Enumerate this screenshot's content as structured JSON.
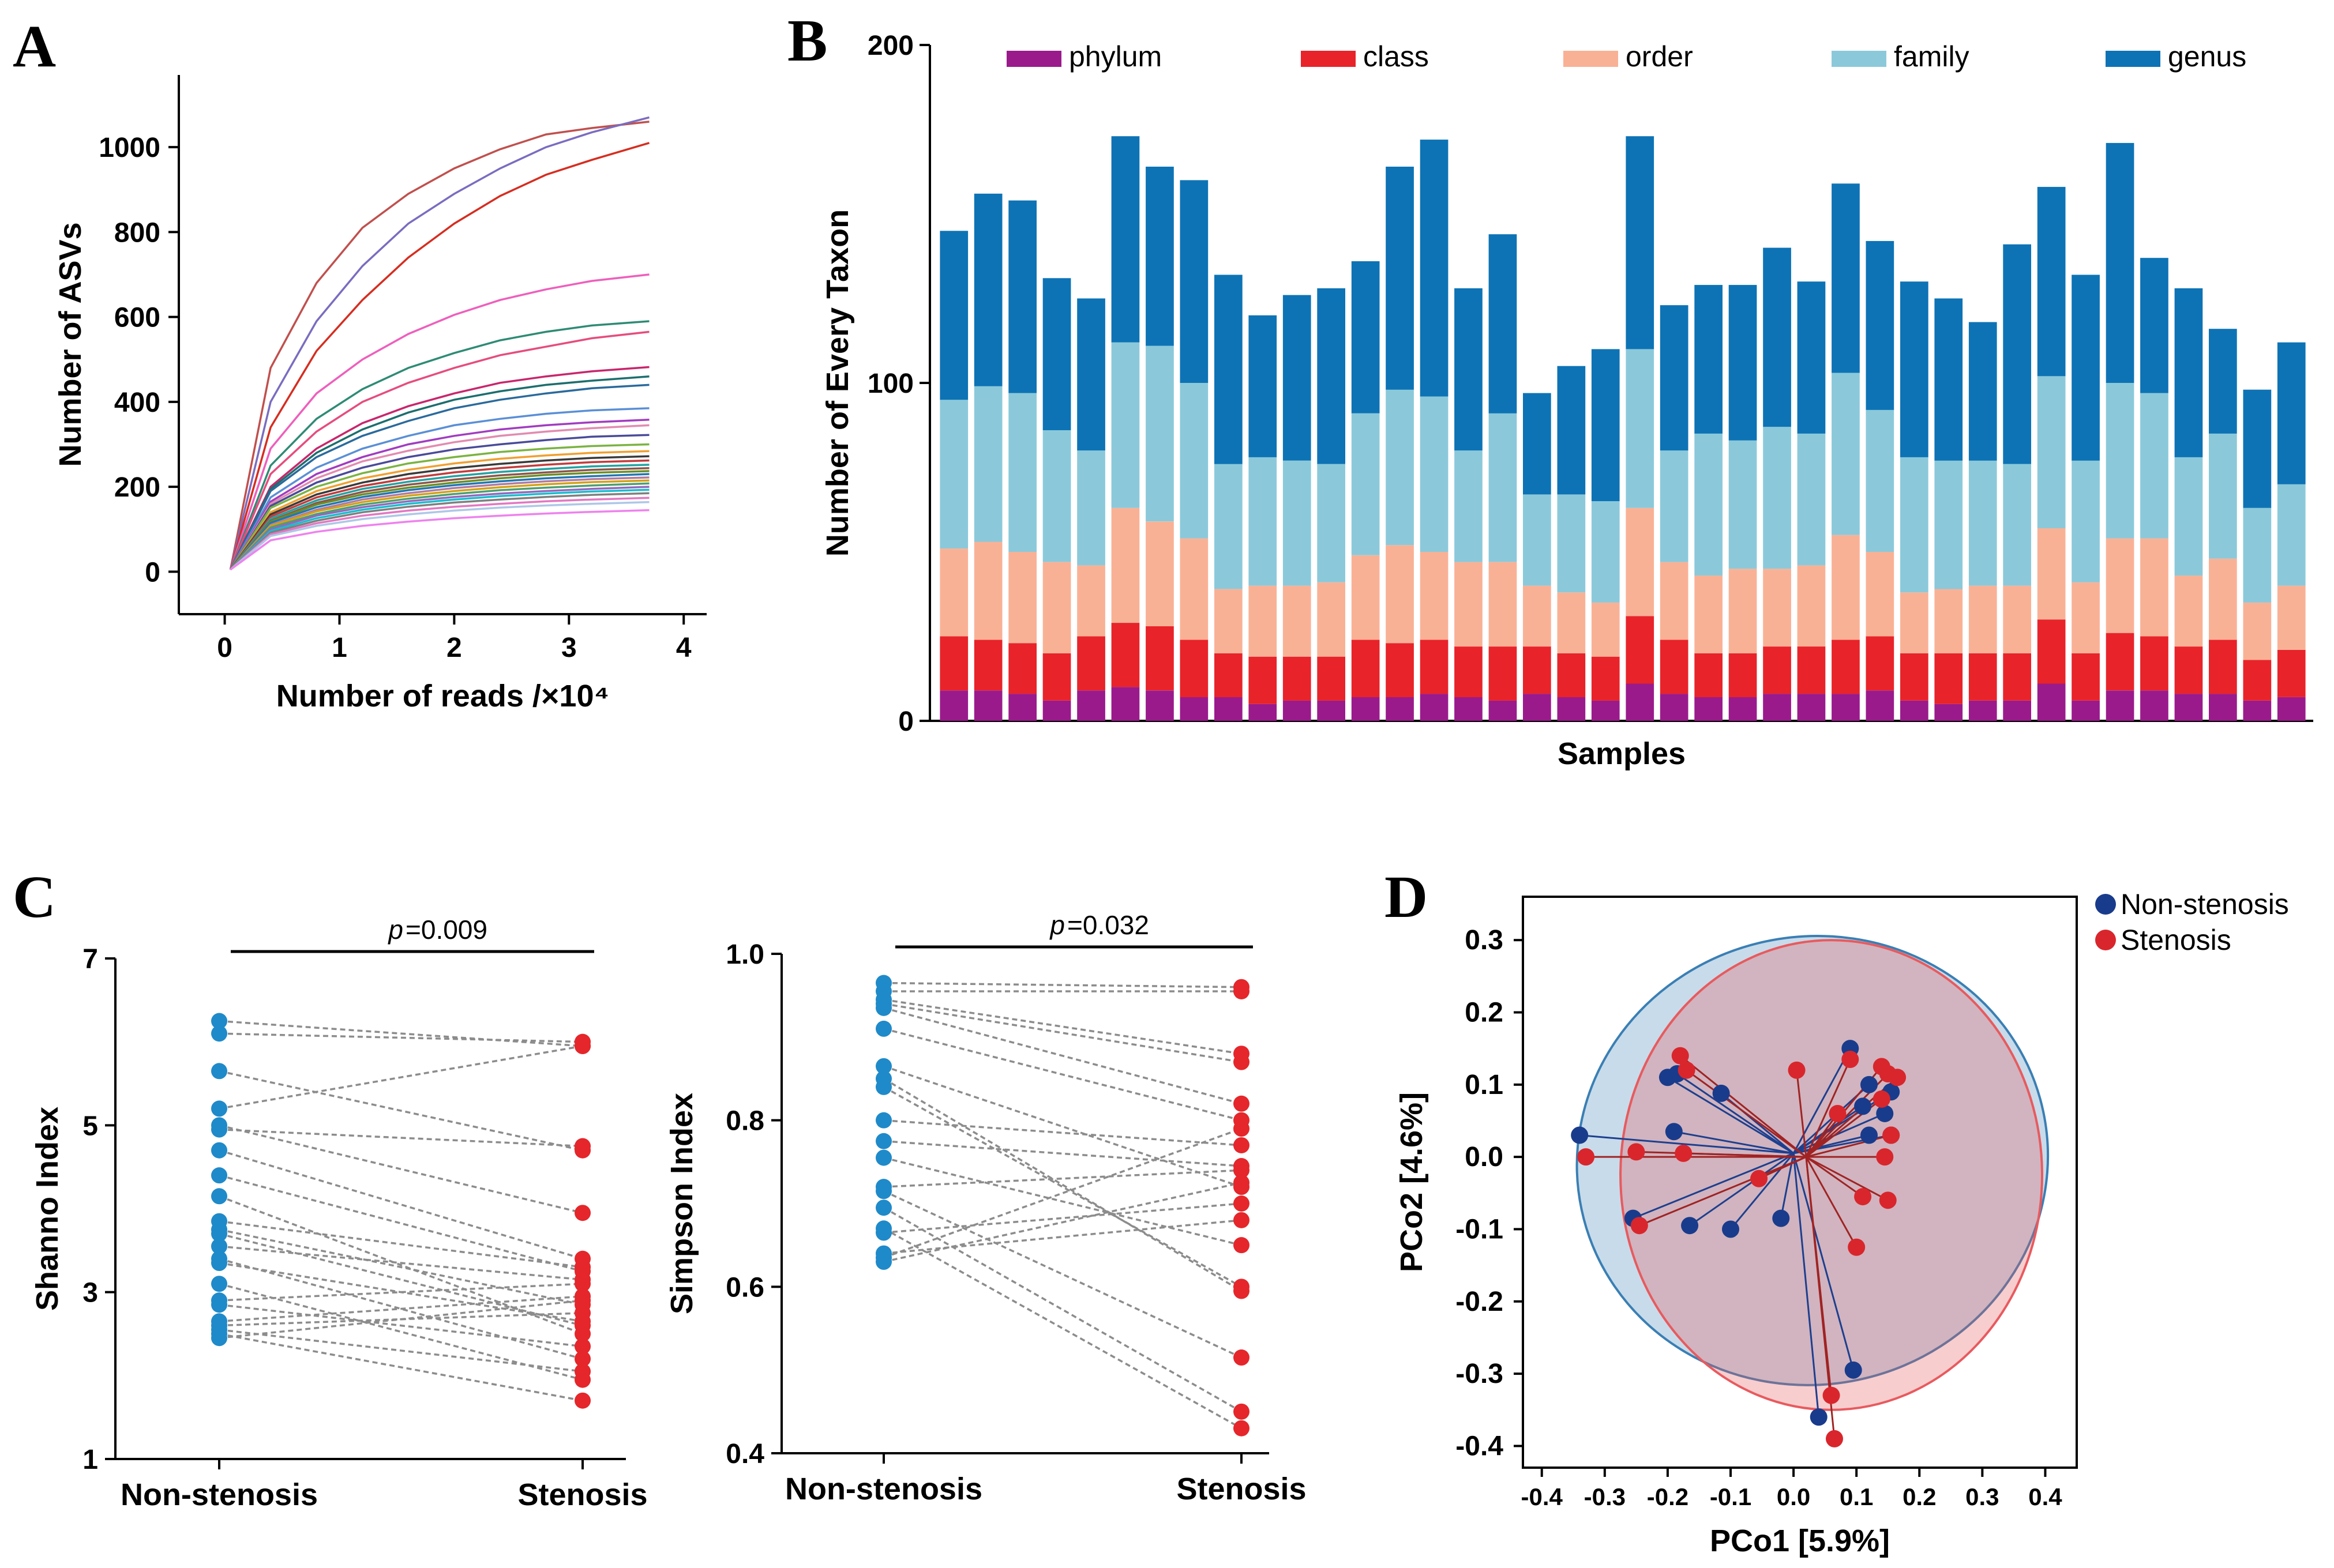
{
  "colors": {
    "phylum": "#9a1a8c",
    "class": "#e8232a",
    "order": "#f9b196",
    "family": "#8bc9da",
    "genus": "#0d73b5",
    "non_stenosis": "#1f8ac9",
    "stenosis": "#e5262b",
    "pcoa_non": "#193b8c",
    "pcoa_sten": "#d9262c",
    "ellipse_non": "#3a7fb4",
    "ellipse_sten": "#e85a5e"
  },
  "panels": {
    "a": "A",
    "b": "B",
    "c": "C",
    "d": "D"
  },
  "chart_data": [
    {
      "id": "A",
      "type": "line",
      "title": "",
      "xlabel": "Number of reads /×10⁴",
      "ylabel": "Number of ASVs",
      "xlim": [
        -0.4,
        4.2
      ],
      "ylim": [
        -100,
        1170
      ],
      "xticks": [
        0,
        1,
        2,
        3,
        4
      ],
      "yticks": [
        0,
        200,
        400,
        600,
        800,
        1000
      ],
      "x": [
        0.05,
        0.4,
        0.8,
        1.2,
        1.6,
        2.0,
        2.4,
        2.8,
        3.2,
        3.7
      ],
      "series": [
        {
          "name": "s1",
          "color": "#c0504d",
          "values": [
            5,
            480,
            680,
            810,
            890,
            950,
            995,
            1030,
            1045,
            1060
          ]
        },
        {
          "name": "s2",
          "color": "#7a6cc0",
          "values": [
            5,
            400,
            590,
            720,
            820,
            890,
            950,
            1000,
            1035,
            1070
          ]
        },
        {
          "name": "s3",
          "color": "#d62d20",
          "values": [
            5,
            340,
            520,
            640,
            740,
            820,
            885,
            935,
            970,
            1010
          ]
        },
        {
          "name": "s4",
          "color": "#ee5fbc",
          "values": [
            5,
            290,
            420,
            500,
            560,
            605,
            640,
            665,
            685,
            700
          ]
        },
        {
          "name": "s5",
          "color": "#2e8b74",
          "values": [
            5,
            250,
            360,
            430,
            480,
            515,
            545,
            565,
            580,
            590
          ]
        },
        {
          "name": "s6",
          "color": "#e64c7d",
          "values": [
            5,
            230,
            330,
            400,
            445,
            480,
            510,
            530,
            550,
            565
          ]
        },
        {
          "name": "s7",
          "color": "#c8266c",
          "values": [
            5,
            200,
            290,
            350,
            390,
            420,
            445,
            460,
            472,
            482
          ]
        },
        {
          "name": "s8",
          "color": "#1d6e6e",
          "values": [
            5,
            195,
            280,
            335,
            375,
            405,
            425,
            440,
            450,
            460
          ]
        },
        {
          "name": "s9",
          "color": "#2a6a9c",
          "values": [
            5,
            190,
            270,
            320,
            355,
            385,
            405,
            420,
            432,
            440
          ]
        },
        {
          "name": "s10",
          "color": "#5a8fd6",
          "values": [
            5,
            175,
            245,
            290,
            320,
            345,
            360,
            372,
            380,
            385
          ]
        },
        {
          "name": "s11",
          "color": "#a13cc0",
          "values": [
            5,
            165,
            230,
            270,
            300,
            320,
            335,
            345,
            352,
            358
          ]
        },
        {
          "name": "s12",
          "color": "#e28bb0",
          "values": [
            5,
            160,
            220,
            260,
            285,
            305,
            320,
            330,
            338,
            345
          ]
        },
        {
          "name": "s13",
          "color": "#4a4a9a",
          "values": [
            5,
            155,
            210,
            245,
            270,
            288,
            300,
            310,
            318,
            322
          ]
        },
        {
          "name": "s14",
          "color": "#7bb341",
          "values": [
            5,
            150,
            200,
            232,
            255,
            270,
            282,
            290,
            296,
            300
          ]
        },
        {
          "name": "s15",
          "color": "#f0a030",
          "values": [
            5,
            140,
            190,
            220,
            240,
            255,
            266,
            274,
            280,
            284
          ]
        },
        {
          "name": "s16",
          "color": "#3a3a3a",
          "values": [
            5,
            135,
            182,
            210,
            230,
            244,
            254,
            262,
            268,
            272
          ]
        },
        {
          "name": "s17",
          "color": "#c43b3b",
          "values": [
            5,
            130,
            175,
            202,
            220,
            234,
            244,
            252,
            258,
            262
          ]
        },
        {
          "name": "s18",
          "color": "#22a3a3",
          "values": [
            5,
            125,
            168,
            195,
            212,
            225,
            235,
            242,
            248,
            252
          ]
        },
        {
          "name": "s19",
          "color": "#8c564b",
          "values": [
            5,
            120,
            162,
            188,
            205,
            217,
            227,
            234,
            240,
            244
          ]
        },
        {
          "name": "s20",
          "color": "#6b8e23",
          "values": [
            5,
            118,
            158,
            182,
            198,
            210,
            220,
            228,
            233,
            237
          ]
        },
        {
          "name": "s21",
          "color": "#1f77b4",
          "values": [
            5,
            115,
            152,
            176,
            192,
            204,
            213,
            220,
            225,
            230
          ]
        },
        {
          "name": "s22",
          "color": "#b07aa1",
          "values": [
            5,
            110,
            146,
            170,
            185,
            197,
            206,
            213,
            218,
            222
          ]
        },
        {
          "name": "s23",
          "color": "#d4a017",
          "values": [
            5,
            108,
            142,
            164,
            179,
            190,
            199,
            206,
            211,
            215
          ]
        },
        {
          "name": "s24",
          "color": "#4c9f70",
          "values": [
            5,
            104,
            136,
            158,
            172,
            183,
            192,
            198,
            203,
            208
          ]
        },
        {
          "name": "s25",
          "color": "#9467bd",
          "values": [
            5,
            100,
            132,
            152,
            166,
            176,
            184,
            190,
            195,
            200
          ]
        },
        {
          "name": "s26",
          "color": "#17becf",
          "values": [
            5,
            96,
            126,
            146,
            160,
            170,
            178,
            184,
            189,
            193
          ]
        },
        {
          "name": "s27",
          "color": "#7f7f7f",
          "values": [
            5,
            92,
            120,
            140,
            153,
            163,
            170,
            176,
            181,
            185
          ]
        },
        {
          "name": "s28",
          "color": "#e377c2",
          "values": [
            5,
            88,
            114,
            132,
            144,
            153,
            160,
            166,
            170,
            174
          ]
        },
        {
          "name": "s29",
          "color": "#aec7e8",
          "values": [
            5,
            84,
            108,
            124,
            135,
            144,
            151,
            156,
            160,
            164
          ]
        },
        {
          "name": "s30",
          "color": "#ee82ee",
          "values": [
            5,
            74,
            94,
            108,
            118,
            126,
            132,
            137,
            141,
            145
          ]
        }
      ]
    },
    {
      "id": "B",
      "type": "bar",
      "stacked": true,
      "xlabel": "Samples",
      "ylabel": "Number of Every Taxon",
      "ylim": [
        0,
        200
      ],
      "yticks": [
        0,
        100,
        200
      ],
      "legend": [
        "phylum",
        "class",
        "order",
        "family",
        "genus"
      ],
      "series": [
        {
          "name": "phylum",
          "values": [
            9,
            9,
            8,
            6,
            9,
            10,
            9,
            7,
            7,
            5,
            6,
            6,
            7,
            7,
            8,
            7,
            6,
            8,
            7,
            6,
            11,
            8,
            7,
            7,
            8,
            8,
            8,
            9,
            6,
            5,
            6,
            6,
            11,
            6,
            9,
            9,
            8,
            8,
            6,
            7
          ]
        },
        {
          "name": "class",
          "values": [
            16,
            15,
            15,
            14,
            16,
            19,
            19,
            17,
            13,
            14,
            13,
            13,
            17,
            16,
            16,
            15,
            16,
            14,
            13,
            13,
            20,
            16,
            13,
            13,
            14,
            14,
            16,
            16,
            14,
            15,
            14,
            14,
            19,
            14,
            17,
            16,
            14,
            16,
            12,
            14
          ]
        },
        {
          "name": "order",
          "values": [
            26,
            29,
            27,
            27,
            21,
            34,
            31,
            30,
            19,
            21,
            21,
            22,
            25,
            29,
            26,
            25,
            25,
            18,
            18,
            16,
            32,
            23,
            23,
            25,
            23,
            24,
            31,
            25,
            18,
            19,
            20,
            20,
            27,
            21,
            28,
            29,
            21,
            24,
            17,
            19
          ]
        },
        {
          "name": "family",
          "values": [
            44,
            46,
            47,
            39,
            34,
            49,
            52,
            46,
            37,
            38,
            37,
            35,
            42,
            46,
            46,
            33,
            44,
            27,
            29,
            30,
            47,
            33,
            42,
            38,
            42,
            39,
            48,
            42,
            40,
            38,
            37,
            36,
            45,
            36,
            46,
            43,
            35,
            37,
            28,
            30
          ]
        },
        {
          "name": "genus",
          "values": [
            50,
            57,
            57,
            45,
            45,
            61,
            53,
            60,
            56,
            42,
            49,
            52,
            45,
            66,
            76,
            48,
            53,
            30,
            38,
            45,
            63,
            43,
            44,
            46,
            53,
            45,
            56,
            50,
            52,
            48,
            41,
            65,
            56,
            55,
            71,
            40,
            50,
            31,
            35,
            42
          ]
        }
      ]
    },
    {
      "id": "C1",
      "type": "scatter",
      "subtype": "paired",
      "categories": [
        "Non-stenosis",
        "Stenosis"
      ],
      "ylabel": "Shanno Index",
      "ylim": [
        1,
        7
      ],
      "yticks": [
        1,
        3,
        5,
        7
      ],
      "p_label": "p",
      "p_value": "=0.009",
      "pairs": [
        [
          6.25,
          5.95
        ],
        [
          6.1,
          6.0
        ],
        [
          5.65,
          4.7
        ],
        [
          5.2,
          5.95
        ],
        [
          5.0,
          3.95
        ],
        [
          4.95,
          4.75
        ],
        [
          4.7,
          3.4
        ],
        [
          4.4,
          3.25
        ],
        [
          4.15,
          2.5
        ],
        [
          3.85,
          3.3
        ],
        [
          3.75,
          2.85
        ],
        [
          3.7,
          2.6
        ],
        [
          3.55,
          3.15
        ],
        [
          3.4,
          2.2
        ],
        [
          3.35,
          2.65
        ],
        [
          3.1,
          1.95
        ],
        [
          2.9,
          3.1
        ],
        [
          2.85,
          2.35
        ],
        [
          2.65,
          2.95
        ],
        [
          2.6,
          2.75
        ],
        [
          2.55,
          2.05
        ],
        [
          2.5,
          1.7
        ],
        [
          2.45,
          2.9
        ]
      ]
    },
    {
      "id": "C2",
      "type": "scatter",
      "subtype": "paired",
      "categories": [
        "Non-stenosis",
        "Stenosis"
      ],
      "ylabel": "Simpson Index",
      "ylim": [
        0.4,
        1.0
      ],
      "yticks": [
        0.4,
        0.6,
        0.8,
        1.0
      ],
      "p_label": "p",
      "p_value": "=0.032",
      "pairs": [
        [
          0.965,
          0.96
        ],
        [
          0.955,
          0.955
        ],
        [
          0.945,
          0.88
        ],
        [
          0.94,
          0.87
        ],
        [
          0.935,
          0.82
        ],
        [
          0.91,
          0.8
        ],
        [
          0.865,
          0.72
        ],
        [
          0.85,
          0.595
        ],
        [
          0.84,
          0.6
        ],
        [
          0.8,
          0.77
        ],
        [
          0.775,
          0.745
        ],
        [
          0.755,
          0.65
        ],
        [
          0.72,
          0.74
        ],
        [
          0.715,
          0.515
        ],
        [
          0.695,
          0.45
        ],
        [
          0.67,
          0.43
        ],
        [
          0.665,
          0.7
        ],
        [
          0.64,
          0.68
        ],
        [
          0.635,
          0.79
        ],
        [
          0.63,
          0.725
        ]
      ]
    },
    {
      "id": "D",
      "type": "scatter",
      "subtype": "pcoa",
      "xlabel": "PCo1 [5.9%]",
      "ylabel": "PCo2 [4.6%]",
      "xlim": [
        -0.43,
        0.45
      ],
      "ylim": [
        -0.43,
        0.36
      ],
      "xticks": [
        -0.4,
        -0.3,
        -0.2,
        -0.1,
        0.0,
        0.1,
        0.2,
        0.3,
        0.4
      ],
      "yticks": [
        -0.4,
        -0.3,
        -0.2,
        -0.1,
        0.0,
        0.1,
        0.2,
        0.3
      ],
      "legend": [
        "Non-stenosis",
        "Stenosis"
      ],
      "centroid_non": [
        0.0,
        0.005
      ],
      "centroid_sten": [
        0.02,
        0.0
      ],
      "ellipse_non": {
        "cx": 0.03,
        "cy": -0.005,
        "rx": 0.375,
        "ry": 0.31,
        "angle": 12
      },
      "ellipse_sten": {
        "cx": 0.06,
        "cy": -0.025,
        "rx": 0.335,
        "ry": 0.325,
        "angle": 0
      },
      "points_non": [
        [
          -0.34,
          0.03
        ],
        [
          -0.2,
          0.11
        ],
        [
          -0.185,
          0.115
        ],
        [
          -0.19,
          0.035
        ],
        [
          -0.115,
          0.088
        ],
        [
          -0.255,
          -0.085
        ],
        [
          -0.165,
          -0.095
        ],
        [
          -0.1,
          -0.1
        ],
        [
          -0.02,
          -0.085
        ],
        [
          0.09,
          0.15
        ],
        [
          0.12,
          0.1
        ],
        [
          0.155,
          0.09
        ],
        [
          0.145,
          0.06
        ],
        [
          0.11,
          0.07
        ],
        [
          0.12,
          0.03
        ],
        [
          0.155,
          0.03
        ],
        [
          0.095,
          -0.295
        ],
        [
          0.04,
          -0.36
        ]
      ],
      "points_sten": [
        [
          -0.33,
          0.0
        ],
        [
          -0.245,
          -0.095
        ],
        [
          -0.18,
          0.14
        ],
        [
          -0.17,
          0.12
        ],
        [
          -0.175,
          0.005
        ],
        [
          -0.055,
          -0.03
        ],
        [
          -0.25,
          0.007
        ],
        [
          0.005,
          0.12
        ],
        [
          0.07,
          0.06
        ],
        [
          0.09,
          0.135
        ],
        [
          0.14,
          0.125
        ],
        [
          0.15,
          0.115
        ],
        [
          0.165,
          0.11
        ],
        [
          0.14,
          0.08
        ],
        [
          0.155,
          0.03
        ],
        [
          0.145,
          0.0
        ],
        [
          0.11,
          -0.055
        ],
        [
          0.15,
          -0.06
        ],
        [
          0.1,
          -0.125
        ],
        [
          0.06,
          -0.33
        ],
        [
          0.065,
          -0.39
        ]
      ]
    }
  ]
}
